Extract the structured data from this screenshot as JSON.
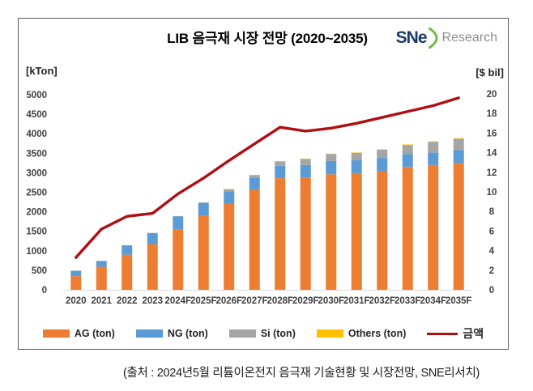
{
  "header": {
    "title": "LIB 음극재 시장 전망 (2020~2035)",
    "logo": {
      "mark": "SNe",
      "text": "Research"
    }
  },
  "chart_data": {
    "type": "bar",
    "subtype": "stacked-bars-with-secondary-axis-line",
    "title": "LIB 음극재 시장 전망 (2020~2035)",
    "categories": [
      "2020",
      "2021",
      "2022",
      "2023",
      "2024F",
      "2025F",
      "2026F",
      "2027F",
      "2028F",
      "2029F",
      "2030F",
      "2031F",
      "2032F",
      "2033F",
      "2034F",
      "2035F"
    ],
    "series": [
      {
        "name": "AG (ton)",
        "kind": "bar",
        "axis": "left",
        "color": "#ED7D31",
        "values": [
          350,
          590,
          900,
          1170,
          1550,
          1900,
          2210,
          2560,
          2860,
          2880,
          2960,
          2990,
          3040,
          3150,
          3200,
          3250
        ]
      },
      {
        "name": "NG (ton)",
        "kind": "bar",
        "axis": "left",
        "color": "#5B9BD5",
        "values": [
          140,
          150,
          240,
          280,
          330,
          320,
          310,
          310,
          320,
          320,
          340,
          330,
          340,
          330,
          320,
          330
        ]
      },
      {
        "name": "Si (ton)",
        "kind": "bar",
        "axis": "left",
        "color": "#A5A5A5",
        "values": [
          0,
          0,
          0,
          10,
          10,
          20,
          60,
          70,
          110,
          150,
          180,
          190,
          210,
          230,
          270,
          290
        ]
      },
      {
        "name": "Others (ton)",
        "kind": "bar",
        "axis": "left",
        "color": "#FFC000",
        "values": [
          0,
          0,
          0,
          0,
          0,
          0,
          5,
          5,
          5,
          10,
          10,
          10,
          10,
          15,
          15,
          15
        ]
      },
      {
        "name": "금액",
        "kind": "line",
        "axis": "right",
        "color": "#B00E11",
        "values": [
          3.3,
          6.2,
          7.5,
          7.8,
          9.8,
          11.4,
          13.2,
          14.9,
          16.6,
          16.2,
          16.5,
          17.0,
          17.6,
          18.2,
          18.8,
          19.6
        ]
      }
    ],
    "left_axis": {
      "label": "[kTon]",
      "min": 0,
      "max": 5000,
      "step": 500
    },
    "right_axis": {
      "label": "[$ bil]",
      "min": 0,
      "max": 20,
      "step": 2
    },
    "stacked": true,
    "grid": false,
    "legend_position": "bottom"
  },
  "source": "(출처 : 2024년5월 리튬이온전지 음극재 기술현황 및 시장전망, SNE리서치)"
}
